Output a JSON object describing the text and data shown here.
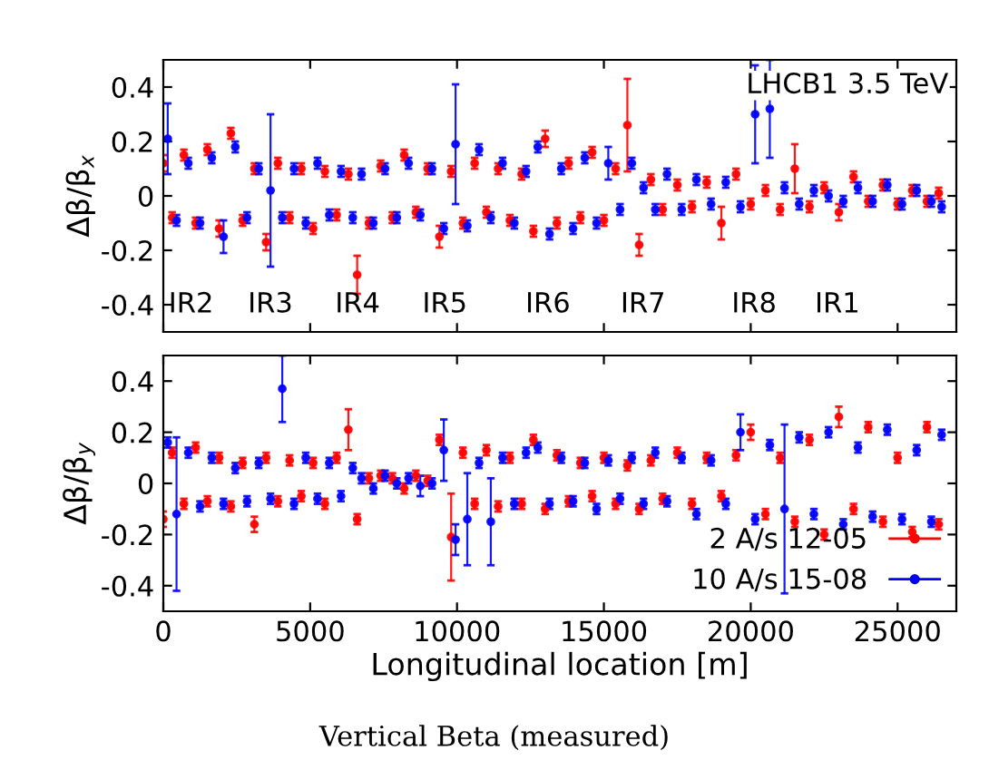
{
  "chart_data": [
    {
      "type": "scatter",
      "ylabel": "Δβ/β$_{x}$",
      "xlim": [
        0,
        27000
      ],
      "xticks": [
        0,
        5000,
        10000,
        15000,
        20000,
        25000
      ],
      "ylim": [
        -0.5,
        0.5
      ],
      "yticks": [
        -0.4,
        -0.2,
        0,
        0.2,
        0.4
      ],
      "tick_labels": "y",
      "grid": false,
      "legend": false,
      "marker": "circle",
      "annotations": [
        "LHCB1 3.5 TeV",
        "IR2",
        "IR3",
        "IR4",
        "IR5",
        "IR6",
        "IR7",
        "IR8",
        "IR1"
      ],
      "series": [
        {
          "color": "#ff0000",
          "x": [
            0,
            300,
            700,
            1100,
            1500,
            1900,
            2300,
            2700,
            3100,
            3500,
            3900,
            4300,
            4700,
            5100,
            5500,
            5900,
            6300,
            6600,
            7000,
            7400,
            7800,
            8200,
            8600,
            9000,
            9400,
            9800,
            10200,
            10600,
            11000,
            11400,
            11800,
            12200,
            12600,
            13000,
            13400,
            13800,
            14200,
            14600,
            15000,
            15400,
            15800,
            16200,
            16600,
            17000,
            17500,
            18000,
            18500,
            19000,
            19500,
            20000,
            20500,
            21000,
            21500,
            22000,
            22500,
            23000,
            23500,
            24000,
            24500,
            25000,
            25500,
            26000,
            26400
          ],
          "values": [
            0.12,
            -0.08,
            0.15,
            -0.1,
            0.17,
            -0.12,
            0.23,
            -0.09,
            0.1,
            -0.17,
            0.12,
            -0.08,
            0.1,
            -0.12,
            0.09,
            -0.07,
            0.08,
            -0.29,
            -0.1,
            0.11,
            -0.08,
            0.15,
            -0.06,
            0.1,
            -0.15,
            0.09,
            -0.1,
            0.12,
            -0.06,
            0.1,
            -0.09,
            0.08,
            -0.13,
            0.21,
            -0.1,
            0.12,
            -0.08,
            0.16,
            -0.09,
            0.1,
            0.26,
            -0.18,
            0.06,
            -0.05,
            0.04,
            -0.04,
            0.05,
            -0.1,
            0.08,
            -0.03,
            0.02,
            -0.05,
            0.1,
            -0.04,
            0.03,
            -0.06,
            0.07,
            -0.02,
            0.04,
            -0.03,
            0.02,
            -0.02,
            0.01
          ],
          "errors": [
            0.03,
            0.02,
            0.02,
            0.02,
            0.02,
            0.03,
            0.02,
            0.02,
            0.02,
            0.03,
            0.02,
            0.02,
            0.02,
            0.02,
            0.02,
            0.02,
            0.02,
            0.07,
            0.02,
            0.02,
            0.02,
            0.02,
            0.02,
            0.02,
            0.04,
            0.02,
            0.02,
            0.02,
            0.02,
            0.02,
            0.02,
            0.02,
            0.02,
            0.03,
            0.02,
            0.02,
            0.02,
            0.02,
            0.02,
            0.02,
            0.17,
            0.04,
            0.02,
            0.02,
            0.02,
            0.02,
            0.02,
            0.06,
            0.02,
            0.02,
            0.02,
            0.02,
            0.09,
            0.02,
            0.02,
            0.03,
            0.02,
            0.02,
            0.02,
            0.02,
            0.02,
            0.02,
            0.02
          ]
        },
        {
          "color": "#0000ff",
          "x": [
            150,
            450,
            850,
            1250,
            1650,
            2050,
            2450,
            2850,
            3250,
            3650,
            4050,
            4450,
            4850,
            5250,
            5650,
            6050,
            6450,
            6750,
            7150,
            7550,
            7950,
            8350,
            8750,
            9150,
            9550,
            9950,
            10350,
            10750,
            11150,
            11550,
            11950,
            12350,
            12750,
            13150,
            13550,
            13950,
            14350,
            14750,
            15150,
            15550,
            15950,
            16350,
            16750,
            17150,
            17650,
            18150,
            18650,
            19150,
            19650,
            20150,
            20650,
            21150,
            21650,
            22150,
            22650,
            23150,
            23650,
            24150,
            24650,
            25150,
            25650,
            26150,
            26500
          ],
          "values": [
            0.21,
            -0.09,
            0.12,
            -0.1,
            0.14,
            -0.15,
            0.18,
            -0.08,
            0.1,
            0.02,
            -0.08,
            0.1,
            -0.1,
            0.12,
            -0.07,
            0.09,
            -0.08,
            0.08,
            -0.1,
            0.1,
            -0.08,
            0.12,
            -0.07,
            0.1,
            -0.12,
            0.19,
            -0.11,
            0.17,
            -0.08,
            0.12,
            -0.1,
            0.09,
            0.18,
            -0.14,
            0.1,
            -0.12,
            0.14,
            -0.1,
            0.12,
            -0.05,
            0.12,
            0.03,
            -0.05,
            0.08,
            -0.05,
            0.06,
            -0.03,
            0.05,
            -0.04,
            0.3,
            0.32,
            0.03,
            -0.03,
            0.02,
            0.0,
            -0.02,
            0.03,
            -0.02,
            0.04,
            -0.03,
            0.02,
            -0.02,
            -0.04
          ],
          "errors": [
            0.13,
            0.02,
            0.02,
            0.02,
            0.02,
            0.06,
            0.02,
            0.02,
            0.02,
            0.28,
            0.02,
            0.02,
            0.02,
            0.02,
            0.02,
            0.02,
            0.02,
            0.02,
            0.02,
            0.02,
            0.02,
            0.02,
            0.02,
            0.02,
            0.02,
            0.22,
            0.02,
            0.02,
            0.02,
            0.02,
            0.02,
            0.02,
            0.02,
            0.02,
            0.02,
            0.02,
            0.02,
            0.02,
            0.06,
            0.02,
            0.02,
            0.02,
            0.02,
            0.02,
            0.02,
            0.02,
            0.02,
            0.02,
            0.02,
            0.18,
            0.18,
            0.02,
            0.02,
            0.02,
            0.02,
            0.02,
            0.02,
            0.02,
            0.02,
            0.02,
            0.02,
            0.02,
            0.02
          ]
        }
      ]
    },
    {
      "type": "scatter",
      "ylabel": "Δβ/β$_{y}$",
      "xlabel": "Longitudinal location [m]",
      "xlim": [
        0,
        27000
      ],
      "xticks": [
        0,
        5000,
        10000,
        15000,
        20000,
        25000
      ],
      "ylim": [
        -0.5,
        0.5
      ],
      "yticks": [
        -0.4,
        -0.2,
        0,
        0.2,
        0.4
      ],
      "grid": false,
      "legend": "bottom right",
      "marker": "circle",
      "annotations": [
        "Vertical Beta (measured)"
      ],
      "series": [
        {
          "name": "2 A/s 12-05",
          "color": "#ff0000",
          "x": [
            0,
            300,
            700,
            1100,
            1500,
            1900,
            2300,
            2700,
            3100,
            3500,
            3900,
            4300,
            4700,
            5100,
            5500,
            5900,
            6300,
            6600,
            7000,
            7400,
            7800,
            8200,
            8600,
            9000,
            9400,
            9800,
            10200,
            10600,
            11000,
            11400,
            11800,
            12200,
            12600,
            13000,
            13400,
            13800,
            14200,
            14600,
            15000,
            15400,
            15800,
            16200,
            16600,
            17000,
            17500,
            18000,
            18500,
            19000,
            19500,
            20000,
            20500,
            21000,
            21500,
            22000,
            22500,
            23000,
            23500,
            24000,
            24500,
            25000,
            25500,
            26000,
            26400
          ],
          "values": [
            -0.14,
            0.12,
            -0.08,
            0.14,
            -0.07,
            0.1,
            -0.09,
            0.08,
            -0.16,
            0.1,
            -0.07,
            0.09,
            -0.05,
            0.08,
            -0.08,
            0.1,
            0.21,
            -0.14,
            0.02,
            0.03,
            0.02,
            -0.02,
            0.03,
            0.01,
            0.17,
            -0.21,
            0.12,
            -0.08,
            0.13,
            -0.09,
            0.1,
            -0.08,
            0.17,
            -0.1,
            0.11,
            -0.07,
            0.08,
            -0.05,
            0.1,
            -0.08,
            0.07,
            -0.1,
            0.09,
            -0.06,
            0.12,
            -0.08,
            0.1,
            -0.05,
            0.11,
            0.2,
            -0.12,
            0.1,
            -0.15,
            0.17,
            -0.2,
            0.26,
            -0.1,
            0.22,
            -0.15,
            0.1,
            -0.19,
            0.22,
            -0.16
          ],
          "errors": [
            0.03,
            0.02,
            0.02,
            0.02,
            0.02,
            0.02,
            0.02,
            0.02,
            0.03,
            0.02,
            0.02,
            0.02,
            0.02,
            0.02,
            0.02,
            0.02,
            0.08,
            0.02,
            0.02,
            0.02,
            0.02,
            0.02,
            0.02,
            0.02,
            0.02,
            0.17,
            0.02,
            0.02,
            0.02,
            0.02,
            0.02,
            0.02,
            0.02,
            0.02,
            0.02,
            0.02,
            0.02,
            0.02,
            0.02,
            0.02,
            0.02,
            0.02,
            0.02,
            0.02,
            0.02,
            0.02,
            0.02,
            0.02,
            0.02,
            0.03,
            0.02,
            0.02,
            0.02,
            0.02,
            0.02,
            0.04,
            0.02,
            0.02,
            0.02,
            0.02,
            0.02,
            0.02,
            0.02
          ]
        },
        {
          "name": "10 A/s 15-08",
          "color": "#0000ff",
          "x": [
            150,
            450,
            850,
            1250,
            1650,
            2050,
            2450,
            2850,
            3250,
            3650,
            4050,
            4450,
            4850,
            5250,
            5650,
            6050,
            6450,
            6750,
            7150,
            7550,
            7950,
            8350,
            8750,
            9150,
            9550,
            9950,
            10350,
            10750,
            11150,
            11550,
            11950,
            12350,
            12750,
            13150,
            13550,
            13950,
            14350,
            14750,
            15150,
            15550,
            15950,
            16350,
            16750,
            17150,
            17650,
            18150,
            18650,
            19150,
            19650,
            20150,
            20650,
            21150,
            21650,
            22150,
            22650,
            23150,
            23650,
            24150,
            24650,
            25150,
            25650,
            26150,
            26500
          ],
          "values": [
            0.16,
            -0.12,
            0.12,
            -0.09,
            0.1,
            -0.08,
            0.06,
            -0.07,
            0.08,
            -0.06,
            0.37,
            -0.08,
            0.1,
            -0.06,
            0.08,
            -0.05,
            0.06,
            0.02,
            -0.02,
            0.03,
            0.0,
            0.02,
            -0.01,
            0.0,
            0.13,
            -0.22,
            -0.14,
            0.08,
            -0.15,
            0.1,
            -0.08,
            0.12,
            0.14,
            -0.08,
            0.1,
            -0.07,
            0.08,
            -0.1,
            0.09,
            -0.06,
            0.1,
            -0.08,
            0.12,
            -0.07,
            0.1,
            -0.12,
            0.09,
            -0.08,
            0.2,
            -0.14,
            0.15,
            -0.1,
            0.18,
            -0.12,
            0.2,
            -0.16,
            0.14,
            -0.13,
            0.21,
            -0.14,
            0.13,
            -0.15,
            0.19
          ],
          "errors": [
            0.02,
            0.3,
            0.02,
            0.02,
            0.02,
            0.02,
            0.02,
            0.02,
            0.02,
            0.02,
            0.13,
            0.02,
            0.02,
            0.02,
            0.02,
            0.02,
            0.02,
            0.02,
            0.02,
            0.02,
            0.02,
            0.02,
            0.04,
            0.02,
            0.12,
            0.06,
            0.18,
            0.02,
            0.17,
            0.02,
            0.02,
            0.02,
            0.02,
            0.02,
            0.02,
            0.02,
            0.02,
            0.02,
            0.02,
            0.02,
            0.02,
            0.02,
            0.02,
            0.02,
            0.02,
            0.02,
            0.02,
            0.02,
            0.07,
            0.02,
            0.02,
            0.33,
            0.02,
            0.02,
            0.02,
            0.02,
            0.02,
            0.02,
            0.02,
            0.02,
            0.02,
            0.02,
            0.02
          ]
        }
      ]
    }
  ]
}
